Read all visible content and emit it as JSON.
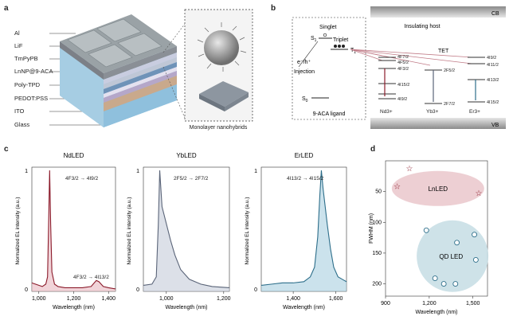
{
  "panels": {
    "a": "a",
    "b": "b",
    "c": "c",
    "d": "d"
  },
  "panel_a": {
    "layers": [
      "Al",
      "LiF",
      "TmPyPB",
      "LnNP@9-ACA",
      "Poly-TPD",
      "PEDOT:PSS",
      "ITO",
      "Glass"
    ],
    "inset_caption": "Monolayer nanohybrids"
  },
  "panel_b": {
    "cb": "CB",
    "vb": "VB",
    "host": "Insulating host",
    "singlet": "Singlet",
    "s1": "S",
    "s1_sub": "1",
    "triplet": "Triplet",
    "t1": "T",
    "t1_sub": "1",
    "s0": "S",
    "s0_sub": "0",
    "injection_top": "e⁻/h⁺",
    "injection": "Injection",
    "ligand": "9-ACA ligand",
    "tet": "TET",
    "nd_levels": [
      "4F7/2",
      "4F5/2",
      "4F3/2",
      "4I15/2",
      "4I9/2"
    ],
    "yb_levels": [
      "2F5/2",
      "2F7/2"
    ],
    "er_levels": [
      "4I9/2",
      "4I11/2",
      "4I13/2",
      "4I15/2"
    ],
    "ions": [
      "Nd3+",
      "Yb3+",
      "Er3+"
    ]
  },
  "panel_c": {
    "titles": [
      "NdLED",
      "YbLED",
      "ErLED"
    ],
    "ylabel": "Normalized EL intensity (a.u.)",
    "xlabel": "Wavelength (nm)",
    "nd_ticks": [
      "1,000",
      "1,200",
      "1,400"
    ],
    "yb_ticks": [
      "1,000",
      "1,200"
    ],
    "er_ticks": [
      "1,400",
      "1,600"
    ],
    "y_ticks": [
      "1",
      "0"
    ],
    "nd_ann1": "4F3/2 → 4I9/2",
    "nd_ann2": "4F3/2 → 4I13/2",
    "yb_ann": "2F5/2 → 2F7/2",
    "er_ann": "4I13/2 → 4I15/2"
  },
  "chart_data": [
    {
      "type": "line",
      "title": "NdLED",
      "xlabel": "Wavelength (nm)",
      "ylabel": "Normalized EL intensity (a.u.)",
      "xlim": [
        960,
        1440
      ],
      "ylim": [
        0,
        1
      ],
      "series": [
        {
          "values": [
            [
              960,
              0.07
            ],
            [
              980,
              0.06
            ],
            [
              1000,
              0.05
            ],
            [
              1020,
              0.04
            ],
            [
              1040,
              0.06
            ],
            [
              1050,
              0.12
            ],
            [
              1056,
              0.55
            ],
            [
              1062,
              1.0
            ],
            [
              1068,
              0.55
            ],
            [
              1075,
              0.16
            ],
            [
              1090,
              0.06
            ],
            [
              1110,
              0.04
            ],
            [
              1150,
              0.03
            ],
            [
              1200,
              0.03
            ],
            [
              1250,
              0.03
            ],
            [
              1300,
              0.04
            ],
            [
              1330,
              0.09
            ],
            [
              1345,
              0.08
            ],
            [
              1370,
              0.04
            ],
            [
              1400,
              0.03
            ],
            [
              1440,
              0.02
            ]
          ]
        }
      ],
      "color": "#8b1a2a"
    },
    {
      "type": "line",
      "title": "YbLED",
      "xlabel": "Wavelength (nm)",
      "ylabel": "Normalized EL intensity (a.u.)",
      "xlim": [
        920,
        1220
      ],
      "ylim": [
        0,
        1
      ],
      "series": [
        {
          "values": [
            [
              920,
              0.05
            ],
            [
              950,
              0.06
            ],
            [
              965,
              0.12
            ],
            [
              972,
              0.55
            ],
            [
              977,
              1.0
            ],
            [
              985,
              0.7
            ],
            [
              1000,
              0.56
            ],
            [
              1015,
              0.42
            ],
            [
              1030,
              0.3
            ],
            [
              1050,
              0.18
            ],
            [
              1080,
              0.1
            ],
            [
              1120,
              0.06
            ],
            [
              1160,
              0.04
            ],
            [
              1220,
              0.03
            ]
          ]
        }
      ],
      "color": "#5a6478"
    },
    {
      "type": "line",
      "title": "ErLED",
      "xlabel": "Wavelength (nm)",
      "ylabel": "Normalized EL intensity (a.u.)",
      "xlim": [
        1250,
        1650
      ],
      "ylim": [
        0,
        1
      ],
      "series": [
        {
          "values": [
            [
              1250,
              0.05
            ],
            [
              1300,
              0.06
            ],
            [
              1350,
              0.07
            ],
            [
              1400,
              0.07
            ],
            [
              1450,
              0.08
            ],
            [
              1480,
              0.12
            ],
            [
              1500,
              0.2
            ],
            [
              1515,
              0.45
            ],
            [
              1525,
              0.8
            ],
            [
              1532,
              1.0
            ],
            [
              1540,
              0.85
            ],
            [
              1550,
              0.7
            ],
            [
              1560,
              0.55
            ],
            [
              1575,
              0.35
            ],
            [
              1590,
              0.2
            ],
            [
              1610,
              0.12
            ],
            [
              1630,
              0.1
            ],
            [
              1650,
              0.08
            ]
          ]
        }
      ],
      "color": "#2d6e8a"
    },
    {
      "type": "scatter",
      "xlabel": "Wavelength (nm)",
      "ylabel": "FWHM (nm)",
      "xlim": [
        900,
        1600
      ],
      "ylim": [
        220,
        0
      ],
      "x_ticks": [
        "900",
        "1,200",
        "1,500"
      ],
      "y_ticks": [
        "50",
        "100",
        "150",
        "200"
      ],
      "series": [
        {
          "name": "LnLED",
          "values": [
            [
              980,
              42
            ],
            [
              1064,
              13
            ],
            [
              1540,
              53
            ]
          ]
        },
        {
          "name": "QD LED",
          "values": [
            [
              1180,
              113
            ],
            [
              1390,
              133
            ],
            [
              1510,
              120
            ],
            [
              1520,
              161
            ],
            [
              1240,
              191
            ],
            [
              1300,
              200
            ],
            [
              1380,
              200
            ]
          ]
        }
      ]
    }
  ]
}
